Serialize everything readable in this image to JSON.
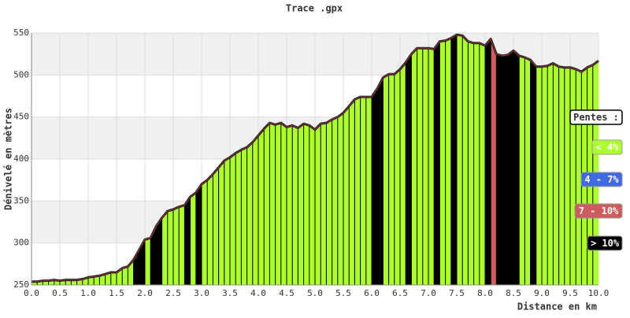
{
  "chart_data": {
    "type": "area",
    "title": "Trace .gpx",
    "xlabel": "Distance en km",
    "ylabel": "Dénivelé en mètres",
    "xlim": [
      0,
      10
    ],
    "ylim": [
      250,
      550
    ],
    "xticks": [
      {
        "value": 0,
        "label": "0.0"
      },
      {
        "value": 0.5,
        "label": "0.5"
      },
      {
        "value": 1,
        "label": "1.0"
      },
      {
        "value": 1.5,
        "label": "1.5"
      },
      {
        "value": 2,
        "label": "2.0"
      },
      {
        "value": 2.5,
        "label": "2.5"
      },
      {
        "value": 3,
        "label": "3.0"
      },
      {
        "value": 3.5,
        "label": "3.5"
      },
      {
        "value": 4,
        "label": "4.0"
      },
      {
        "value": 4.5,
        "label": "4.5"
      },
      {
        "value": 5,
        "label": "5.0"
      },
      {
        "value": 5.5,
        "label": "5.5"
      },
      {
        "value": 6,
        "label": "6.0"
      },
      {
        "value": 6.5,
        "label": "6.5"
      },
      {
        "value": 7,
        "label": "7.0"
      },
      {
        "value": 7.5,
        "label": "7.5"
      },
      {
        "value": 8,
        "label": "8.0"
      },
      {
        "value": 8.5,
        "label": "8.5"
      },
      {
        "value": 9,
        "label": "9.0"
      },
      {
        "value": 9.5,
        "label": "9.5"
      },
      {
        "value": 10,
        "label": "10.0"
      }
    ],
    "yticks": [
      250,
      300,
      350,
      400,
      450,
      500,
      550
    ],
    "grid": true,
    "x": [
      0,
      0.1,
      0.2,
      0.3,
      0.4,
      0.5,
      0.6,
      0.7,
      0.8,
      0.9,
      1,
      1.1,
      1.2,
      1.3,
      1.4,
      1.5,
      1.6,
      1.7,
      1.8,
      1.9,
      2,
      2.1,
      2.2,
      2.3,
      2.4,
      2.5,
      2.6,
      2.7,
      2.8,
      2.9,
      3,
      3.1,
      3.2,
      3.3,
      3.4,
      3.5,
      3.6,
      3.7,
      3.8,
      3.9,
      4,
      4.1,
      4.2,
      4.3,
      4.4,
      4.5,
      4.6,
      4.7,
      4.8,
      4.9,
      5,
      5.1,
      5.2,
      5.3,
      5.4,
      5.5,
      5.6,
      5.7,
      5.8,
      5.9,
      6,
      6.1,
      6.2,
      6.3,
      6.4,
      6.5,
      6.6,
      6.7,
      6.8,
      6.9,
      7,
      7.1,
      7.2,
      7.3,
      7.4,
      7.5,
      7.6,
      7.7,
      7.8,
      7.9,
      8,
      8.1,
      8.2,
      8.3,
      8.4,
      8.5,
      8.6,
      8.7,
      8.8,
      8.9,
      9,
      9.1,
      9.2,
      9.3,
      9.4,
      9.5,
      9.6,
      9.7,
      9.8,
      9.9,
      10
    ],
    "series": [
      {
        "values": [
          254,
          254,
          255,
          255,
          256,
          255,
          256,
          256,
          256,
          257,
          259,
          260,
          261,
          263,
          265,
          265,
          270,
          272,
          280,
          292,
          304,
          306,
          320,
          330,
          338,
          340,
          343,
          345,
          355,
          360,
          370,
          375,
          382,
          390,
          398,
          402,
          407,
          411,
          414,
          420,
          428,
          436,
          443,
          441,
          443,
          438,
          440,
          437,
          442,
          440,
          435,
          442,
          443,
          447,
          450,
          455,
          463,
          471,
          474,
          474,
          474,
          484,
          497,
          501,
          501,
          507,
          515,
          525,
          532,
          532,
          532,
          531,
          540,
          541,
          544,
          548,
          547,
          540,
          538,
          538,
          535,
          543,
          525,
          523,
          524,
          529,
          523,
          521,
          518,
          510,
          510,
          511,
          514,
          510,
          509,
          509,
          507,
          504,
          509,
          512,
          517
        ],
        "segment_classes": [
          0,
          0,
          0,
          0,
          0,
          0,
          0,
          0,
          0,
          0,
          0,
          0,
          0,
          0,
          0,
          0,
          0,
          0,
          3,
          3,
          0,
          3,
          3,
          0,
          0,
          0,
          0,
          3,
          0,
          3,
          0,
          0,
          0,
          0,
          0,
          0,
          0,
          0,
          0,
          0,
          0,
          0,
          0,
          0,
          0,
          0,
          0,
          0,
          0,
          0,
          0,
          0,
          0,
          0,
          0,
          0,
          0,
          0,
          0,
          0,
          3,
          3,
          0,
          0,
          0,
          0,
          3,
          0,
          0,
          0,
          0,
          3,
          0,
          0,
          3,
          0,
          0,
          0,
          0,
          0,
          3,
          2,
          3,
          3,
          3,
          3,
          0,
          0,
          3,
          0,
          0,
          0,
          0,
          0,
          0,
          0,
          0,
          0,
          0,
          0
        ]
      }
    ],
    "legend_title": "Pentes :",
    "slope_classes": [
      {
        "label": "< 4%",
        "color": "#adff2f"
      },
      {
        "label": "4 - 7%",
        "color": "#4169e1"
      },
      {
        "label": "7 - 10%",
        "color": "#cd5c5c"
      },
      {
        "label": "> 10%",
        "color": "#000000"
      }
    ]
  }
}
